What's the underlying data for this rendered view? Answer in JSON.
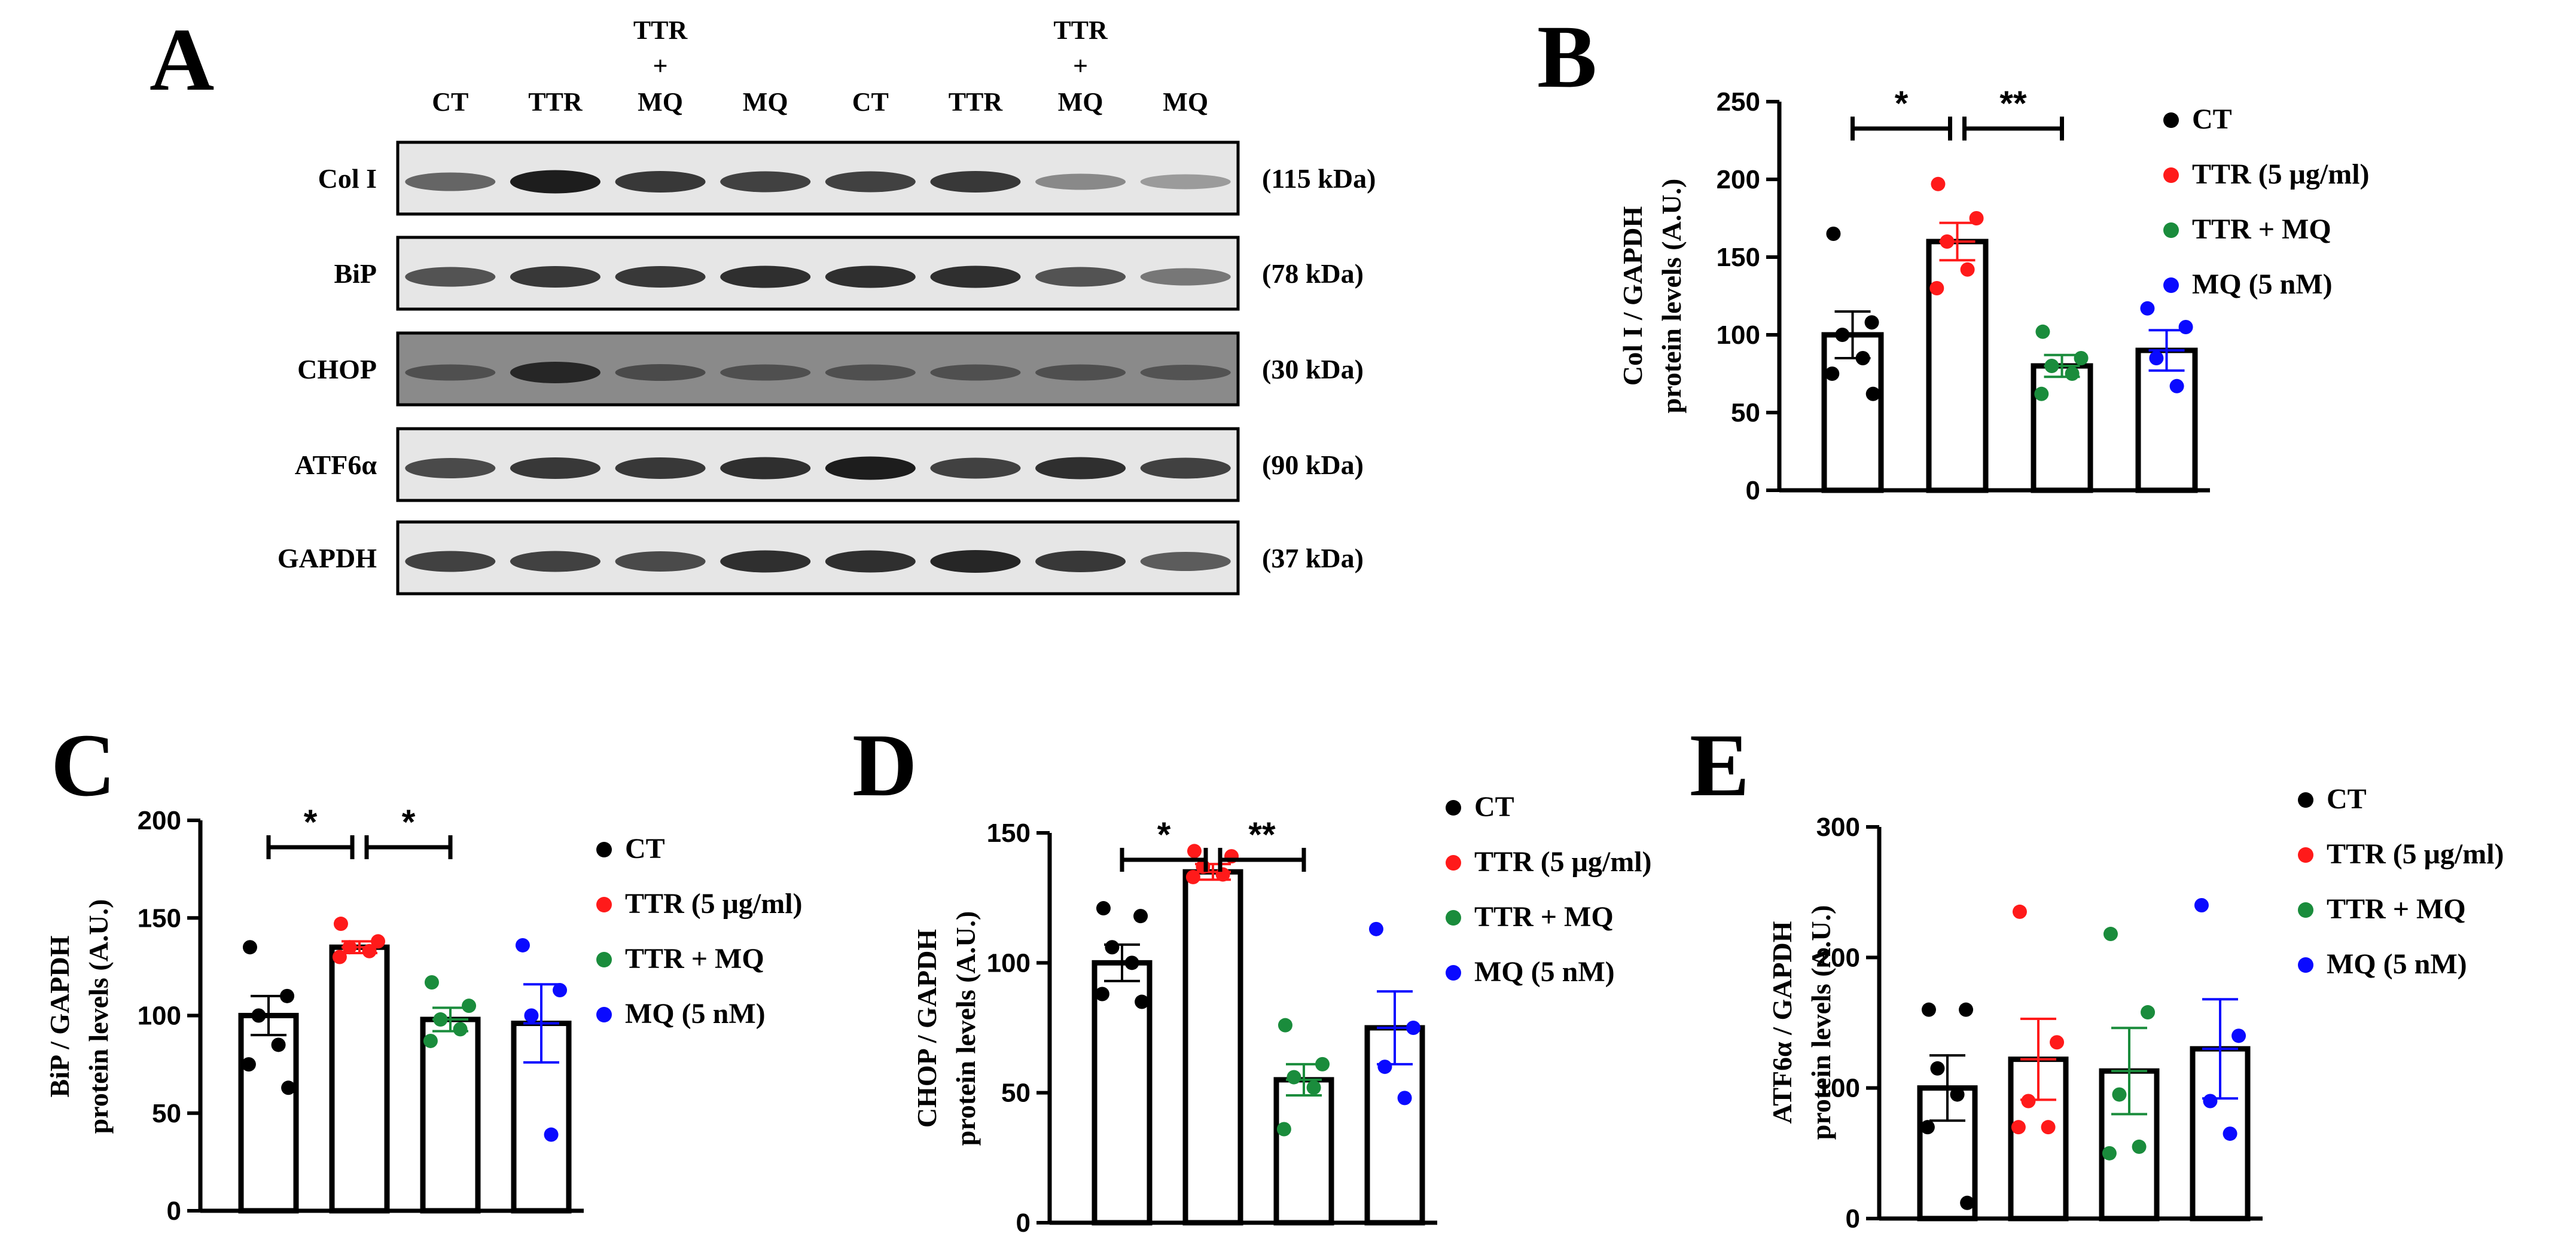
{
  "blot": {
    "panel_letter": "A",
    "lanes": [
      [
        "CT"
      ],
      [
        "TTR"
      ],
      [
        "TTR",
        "+",
        "MQ"
      ],
      [
        "MQ"
      ],
      [
        "CT"
      ],
      [
        "TTR"
      ],
      [
        "TTR",
        "+",
        "MQ"
      ],
      [
        "MQ"
      ]
    ],
    "rows": [
      {
        "name": "Col I",
        "size": "(115 kDa)",
        "dark": false,
        "intensity": [
          0.55,
          0.95,
          0.8,
          0.75,
          0.75,
          0.8,
          0.35,
          0.25
        ]
      },
      {
        "name": "BiP",
        "size": "(78 kDa)",
        "dark": false,
        "intensity": [
          0.65,
          0.8,
          0.8,
          0.85,
          0.85,
          0.85,
          0.65,
          0.45
        ]
      },
      {
        "name": "CHOP",
        "size": "(30 kDa)",
        "dark": true,
        "intensity": [
          0.35,
          0.8,
          0.4,
          0.35,
          0.35,
          0.35,
          0.35,
          0.3
        ]
      },
      {
        "name": "ATF6α",
        "size": "(90 kDa)",
        "dark": false,
        "intensity": [
          0.7,
          0.8,
          0.8,
          0.85,
          0.95,
          0.75,
          0.85,
          0.75
        ]
      },
      {
        "name": "GAPDH",
        "size": "(37 kDa)",
        "dark": false,
        "intensity": [
          0.75,
          0.75,
          0.7,
          0.85,
          0.85,
          0.9,
          0.8,
          0.6
        ]
      }
    ]
  },
  "legend": [
    "CT",
    "TTR (5 μg/ml)",
    "TTR + MQ",
    "MQ (5 nM)"
  ],
  "colors": {
    "CT": "#000000",
    "TTR": "#ff1a1a",
    "TTR_MQ": "#1a8c3c",
    "MQ": "#0a0aff"
  },
  "chart_data": [
    {
      "panel": "B",
      "type": "bar",
      "ylabel": [
        "Col I / GAPDH",
        "protein levels (A.U.)"
      ],
      "ylim": [
        0,
        250
      ],
      "yticks": [
        0,
        50,
        100,
        150,
        200,
        250
      ],
      "categories": [
        "CT",
        "TTR (5 μg/ml)",
        "TTR + MQ",
        "MQ (5 nM)"
      ],
      "values": [
        100,
        160,
        80,
        90
      ],
      "sem": [
        15,
        12,
        7,
        13
      ],
      "points": [
        [
          165,
          108,
          100,
          85,
          75,
          62
        ],
        [
          197,
          175,
          160,
          142,
          130
        ],
        [
          102,
          85,
          80,
          75,
          62
        ],
        [
          117,
          105,
          85,
          67
        ]
      ],
      "significance": [
        {
          "from": 0,
          "to": 1,
          "label": "*"
        },
        {
          "from": 1,
          "to": 2,
          "label": "**"
        }
      ]
    },
    {
      "panel": "C",
      "type": "bar",
      "ylabel": [
        "BiP / GAPDH",
        "protein levels (A.U.)"
      ],
      "ylim": [
        0,
        200
      ],
      "yticks": [
        0,
        50,
        100,
        150,
        200
      ],
      "categories": [
        "CT",
        "TTR (5 μg/ml)",
        "TTR + MQ",
        "MQ (5 nM)"
      ],
      "values": [
        100,
        135,
        98,
        96
      ],
      "sem": [
        10,
        3,
        6,
        20
      ],
      "points": [
        [
          135,
          110,
          100,
          85,
          75,
          63
        ],
        [
          147,
          138,
          135,
          133,
          130
        ],
        [
          117,
          105,
          98,
          93,
          87
        ],
        [
          136,
          113,
          100,
          39
        ]
      ],
      "significance": [
        {
          "from": 0,
          "to": 1,
          "label": "*"
        },
        {
          "from": 1,
          "to": 2,
          "label": "*"
        }
      ]
    },
    {
      "panel": "D",
      "type": "bar",
      "ylabel": [
        "CHOP / GAPDH",
        "protein levels (A.U.)"
      ],
      "ylim": [
        0,
        150
      ],
      "yticks": [
        0,
        50,
        100,
        150
      ],
      "categories": [
        "CT",
        "TTR (5 μg/ml)",
        "TTR + MQ",
        "MQ (5 nM)"
      ],
      "values": [
        100,
        135,
        55,
        75
      ],
      "sem": [
        7,
        3,
        6,
        14
      ],
      "points": [
        [
          121,
          118,
          106,
          100,
          88,
          85
        ],
        [
          143,
          141,
          137,
          134,
          133
        ],
        [
          76,
          61,
          56,
          52,
          36
        ],
        [
          113,
          75,
          60,
          48
        ]
      ],
      "significance": [
        {
          "from": 0,
          "to": 1,
          "label": "*"
        },
        {
          "from": 1,
          "to": 2,
          "label": "**"
        }
      ]
    },
    {
      "panel": "E",
      "type": "bar",
      "ylabel": [
        "ATF6α / GAPDH",
        "protein levels (A.U.)"
      ],
      "ylim": [
        0,
        300
      ],
      "yticks": [
        0,
        100,
        200,
        300
      ],
      "categories": [
        "CT",
        "TTR (5 μg/ml)",
        "TTR + MQ",
        "MQ (5 nM)"
      ],
      "values": [
        100,
        122,
        113,
        130
      ],
      "sem": [
        25,
        31,
        33,
        38
      ],
      "points": [
        [
          160,
          160,
          115,
          95,
          70,
          12
        ],
        [
          235,
          135,
          90,
          70,
          70
        ],
        [
          218,
          158,
          95,
          55,
          50
        ],
        [
          240,
          140,
          90,
          65
        ]
      ],
      "significance": []
    }
  ]
}
